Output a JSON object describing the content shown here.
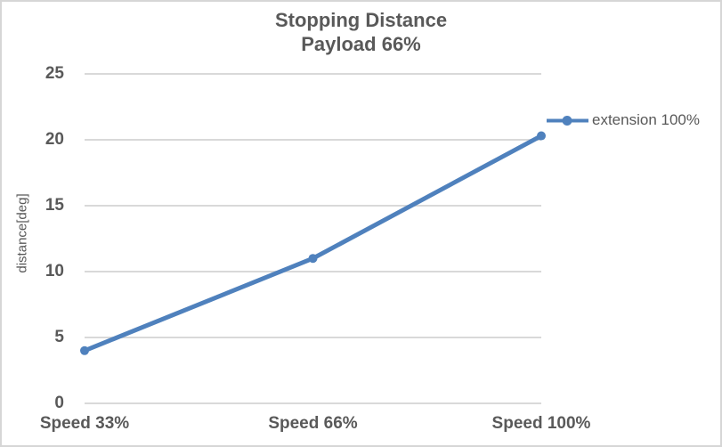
{
  "chart_data": {
    "type": "line",
    "title": "Stopping Distance Payload 66%",
    "title_lines": [
      "Stopping Distance",
      "Payload 66%"
    ],
    "categories": [
      "Speed 33%",
      "Speed 66%",
      "Speed 100%"
    ],
    "series": [
      {
        "name": "extension 100%",
        "values": [
          4,
          11,
          20.3
        ],
        "color": "#4F81BD"
      }
    ],
    "xlabel": "",
    "ylabel": "distance[deg]",
    "ylim": [
      0,
      25
    ],
    "yticks": [
      0,
      5,
      10,
      15,
      20,
      25
    ],
    "grid": "horizontal",
    "legend_position": "right",
    "marker": "circle",
    "colors": {
      "series": "#4F81BD",
      "text": "#595959",
      "gridline": "#D9D9D9",
      "background": "#FFFFFF",
      "border": "#D6D6D6"
    }
  }
}
